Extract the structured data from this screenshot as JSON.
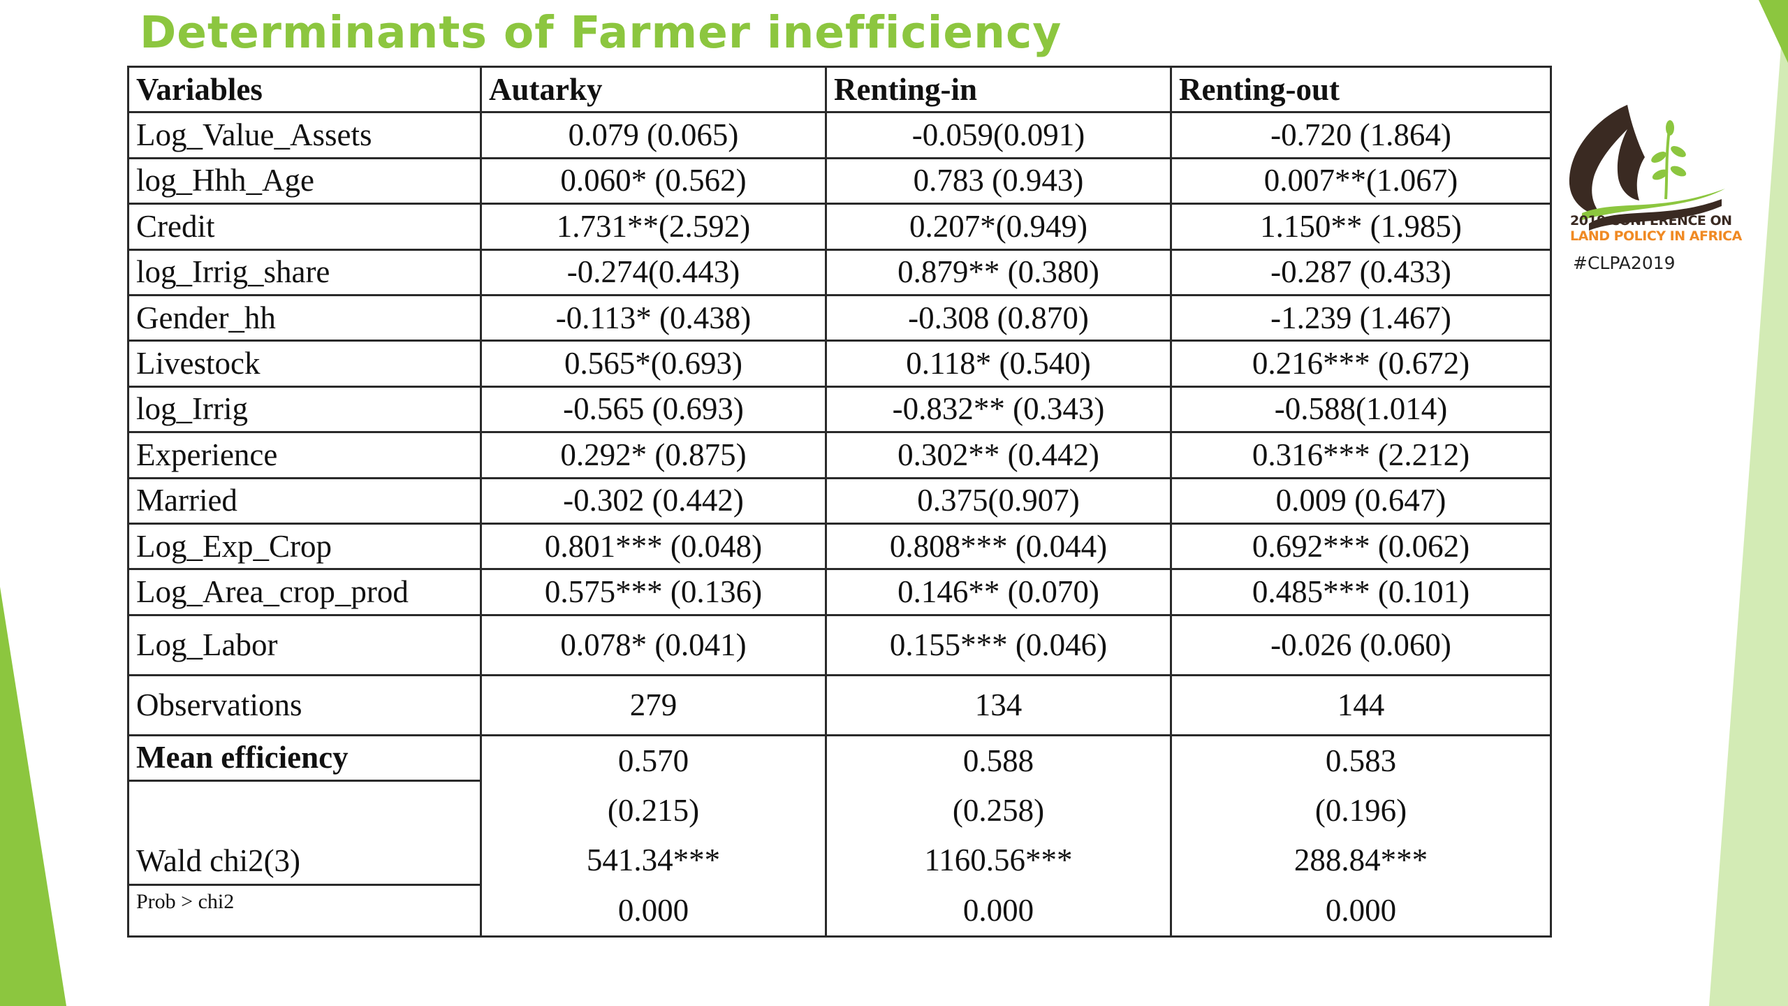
{
  "slide": {
    "title": "Determinants of Farmer inefficiency"
  },
  "colors": {
    "title": "#8cc63f",
    "accent_green": "#8cc63f",
    "accent_light_green": "#d3ebb5",
    "logo_brown": "#3a2a22",
    "logo_orange": "#f08a24"
  },
  "table": {
    "headers": [
      "Variables",
      "Autarky",
      "Renting-in",
      "Renting-out"
    ],
    "rows": [
      {
        "variable": "Log_Value_Assets",
        "autarky": "0.079 (0.065)",
        "renting_in": "-0.059(0.091)",
        "renting_out": "-0.720 (1.864)"
      },
      {
        "variable": "log_Hhh_Age",
        "autarky": "0.060* (0.562)",
        "renting_in": "0.783 (0.943)",
        "renting_out": "0.007**(1.067)"
      },
      {
        "variable": "Credit",
        "autarky": "1.731**(2.592)",
        "renting_in": "0.207*(0.949)",
        "renting_out": "1.150** (1.985)"
      },
      {
        "variable": "log_Irrig_share",
        "autarky": "-0.274(0.443)",
        "renting_in": "0.879** (0.380)",
        "renting_out": "-0.287 (0.433)"
      },
      {
        "variable": "Gender_hh",
        "autarky": "-0.113* (0.438)",
        "renting_in": "-0.308 (0.870)",
        "renting_out": "-1.239 (1.467)"
      },
      {
        "variable": "Livestock",
        "autarky": "0.565*(0.693)",
        "renting_in": "0.118* (0.540)",
        "renting_out": "0.216*** (0.672)"
      },
      {
        "variable": "log_Irrig",
        "autarky": "-0.565 (0.693)",
        "renting_in": "-0.832** (0.343)",
        "renting_out": "-0.588(1.014)"
      },
      {
        "variable": "Experience",
        "autarky": "0.292* (0.875)",
        "renting_in": "0.302** (0.442)",
        "renting_out": "0.316*** (2.212)"
      },
      {
        "variable": "Married",
        "autarky": "-0.302 (0.442)",
        "renting_in": "0.375(0.907)",
        "renting_out": "0.009 (0.647)"
      },
      {
        "variable": "Log_Exp_Crop",
        "autarky": "0.801*** (0.048)",
        "renting_in": "0.808*** (0.044)",
        "renting_out": "0.692*** (0.062)"
      },
      {
        "variable": "Log_Area_crop_prod",
        "autarky": "0.575*** (0.136)",
        "renting_in": "0.146** (0.070)",
        "renting_out": "0.485*** (0.101)"
      },
      {
        "variable": "Log_Labor",
        "autarky": "0.078* (0.041)",
        "renting_in": "0.155*** (0.046)",
        "renting_out": "-0.026 (0.060)"
      }
    ],
    "observations": {
      "label": "Observations",
      "autarky": "279",
      "renting_in": "134",
      "renting_out": "144"
    },
    "summary": {
      "mean_efficiency_label": "Mean efficiency",
      "wald_label": "Wald chi2(3)",
      "prob_label": "Prob > chi2",
      "autarky": {
        "mean": "0.570",
        "sd": "(0.215)",
        "wald": "541.34***",
        "prob": "0.000"
      },
      "renting_in": {
        "mean": "0.588",
        "sd": "(0.258)",
        "wald": "1160.56***",
        "prob": "0.000"
      },
      "renting_out": {
        "mean": "0.583",
        "sd": "(0.196)",
        "wald": "288.84***",
        "prob": "0.000"
      }
    }
  },
  "logo": {
    "line1": "2019 CONFERENCE ON",
    "line2": "LAND POLICY IN AFRICA",
    "hashtag": "#CLPA2019"
  }
}
